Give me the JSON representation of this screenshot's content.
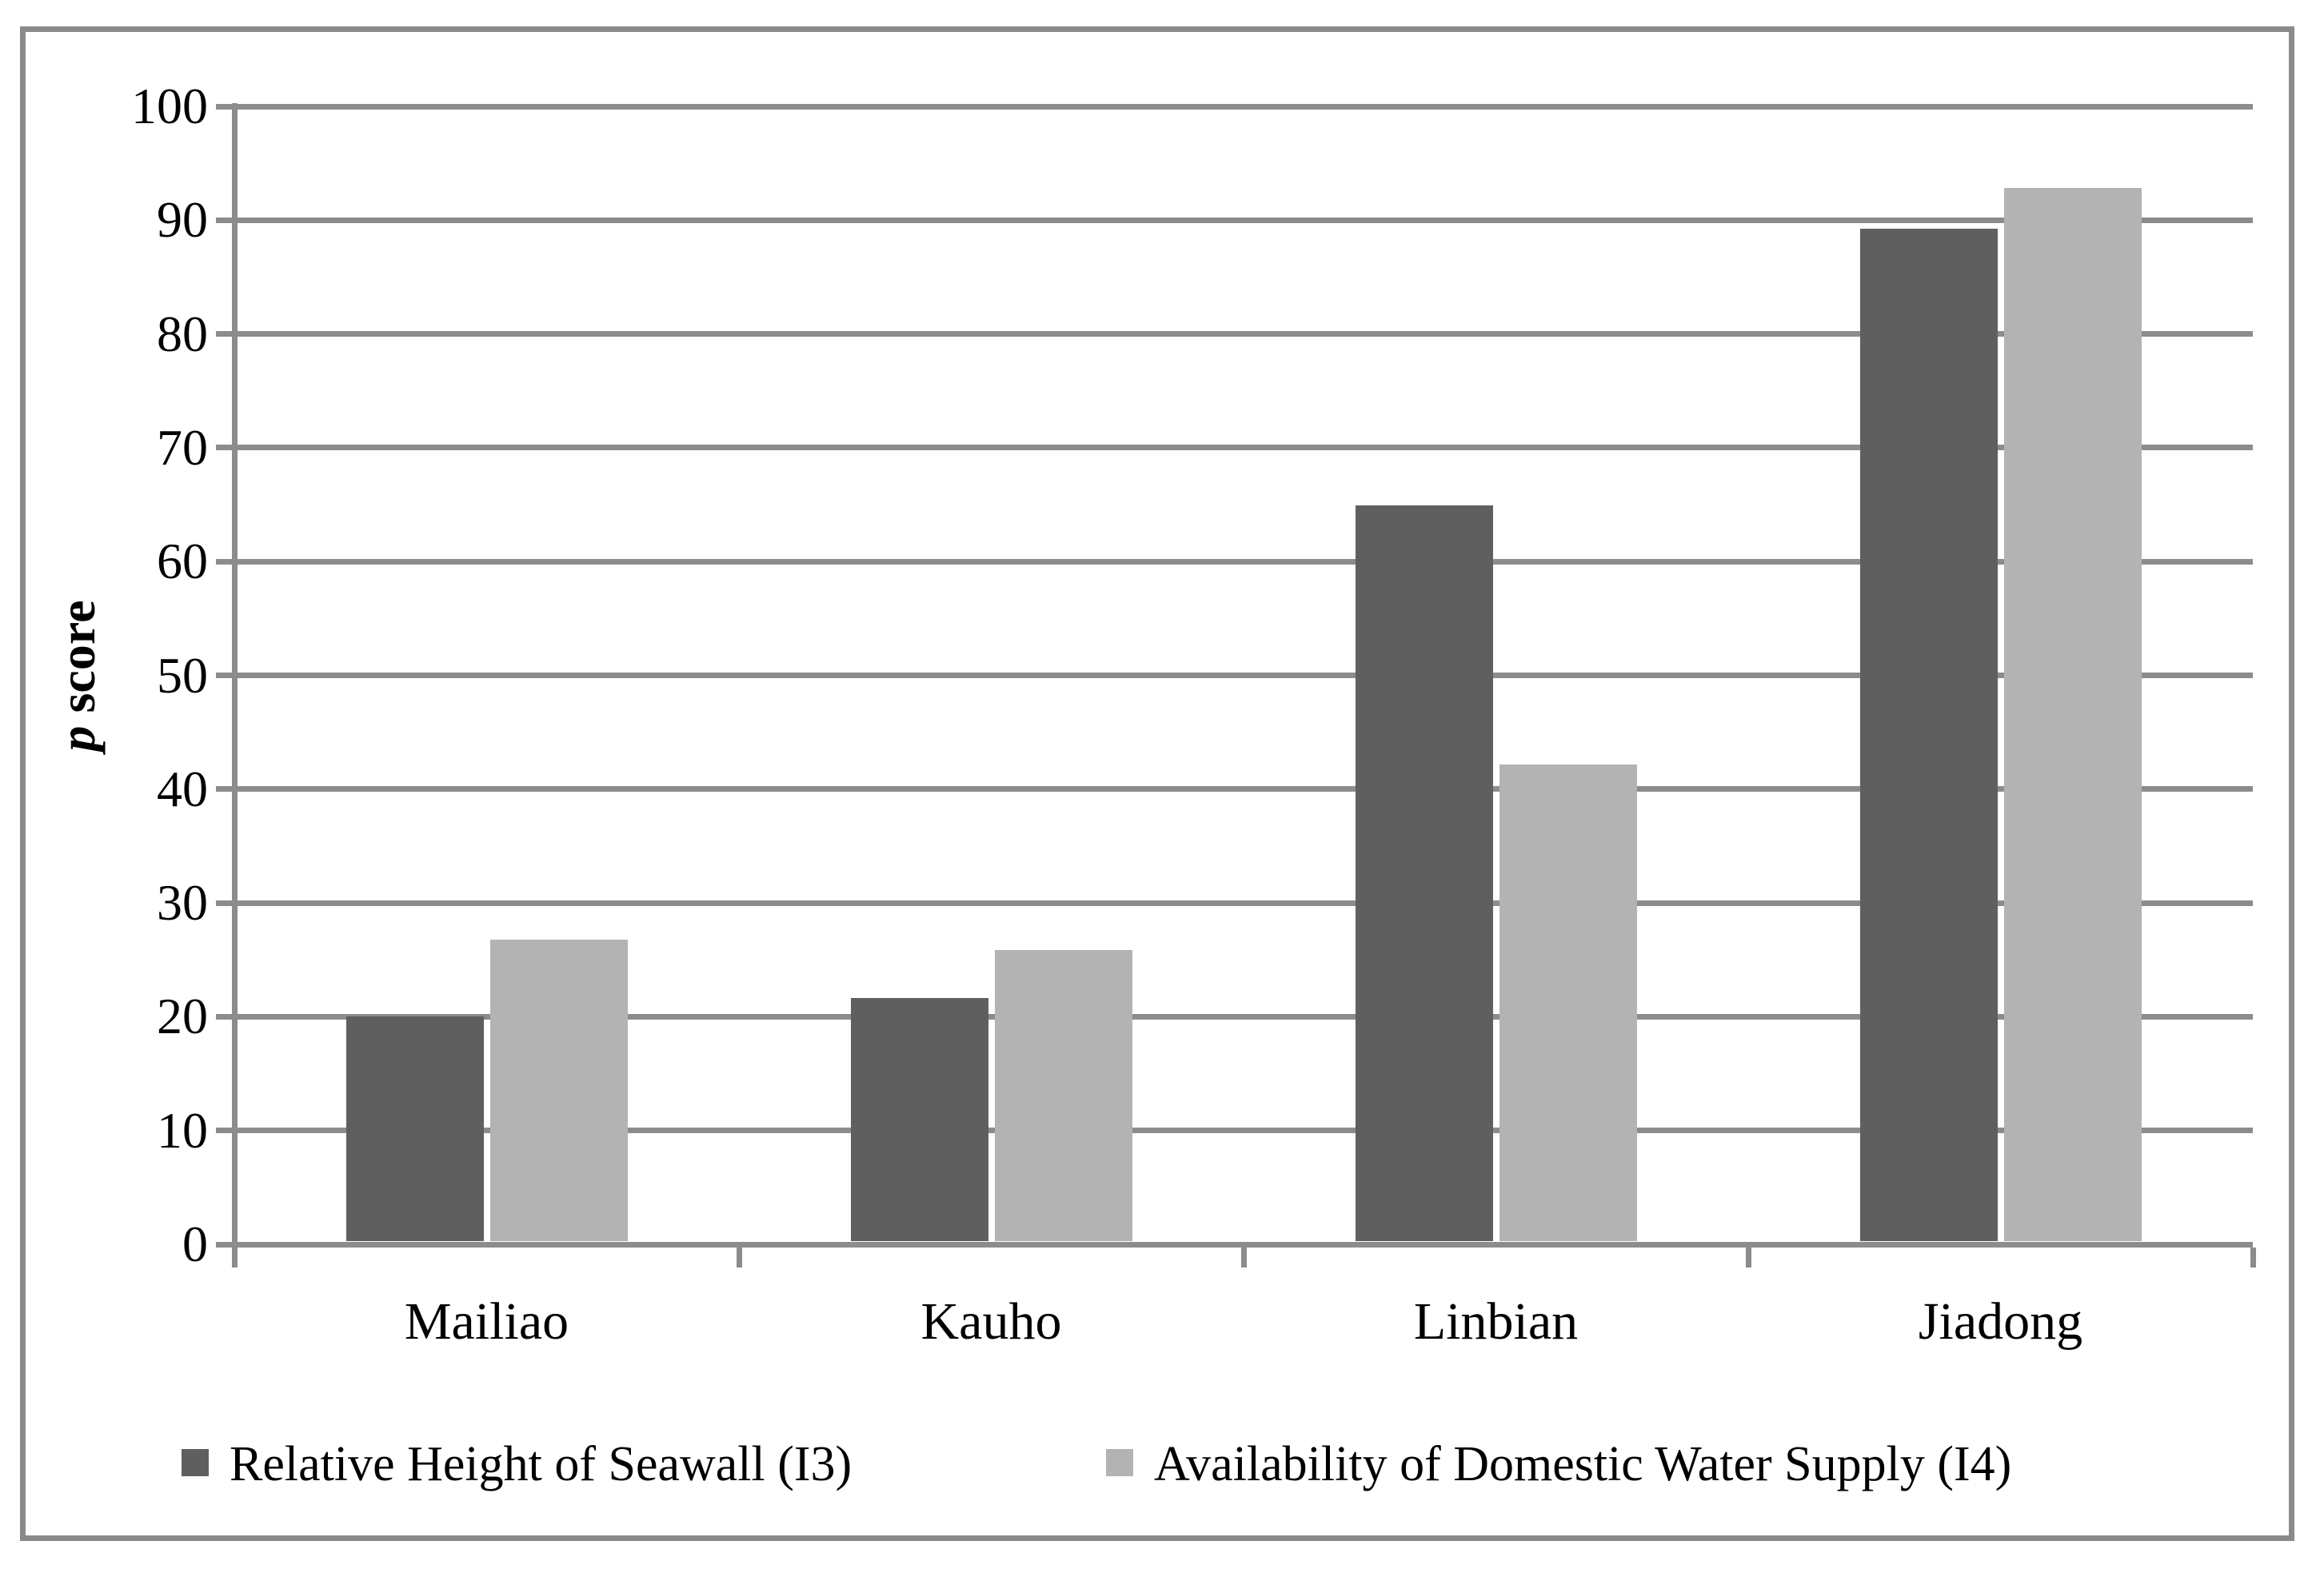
{
  "figure": {
    "frame_color": "#8a8a8a",
    "background": "#ffffff"
  },
  "chart_data": {
    "type": "bar",
    "title": "",
    "categories": [
      "Mailiao",
      "Kauho",
      "Linbian",
      "Jiadong"
    ],
    "series": [
      {
        "name": "Relative Height of Seawall (I3)",
        "color": "#5f5f5f",
        "values": [
          19.8,
          21.4,
          64.7,
          89.0
        ]
      },
      {
        "name": "Availability of Domestic Water Supply (I4)",
        "color": "#b3b3b3",
        "values": [
          26.5,
          25.6,
          41.9,
          92.6
        ]
      }
    ],
    "ylabel": "p score",
    "ylabel_italic_part": "p",
    "ylabel_rest": " score",
    "ylim": [
      0,
      100
    ],
    "ytick_step": 10,
    "yticks": [
      0,
      10,
      20,
      30,
      40,
      50,
      60,
      70,
      80,
      90,
      100
    ],
    "grid": "horizontal gridlines on",
    "legend_position": "bottom",
    "axis_color": "#8c8c8c",
    "gridline_color": "#8c8c8c",
    "text_color": "#000000"
  }
}
